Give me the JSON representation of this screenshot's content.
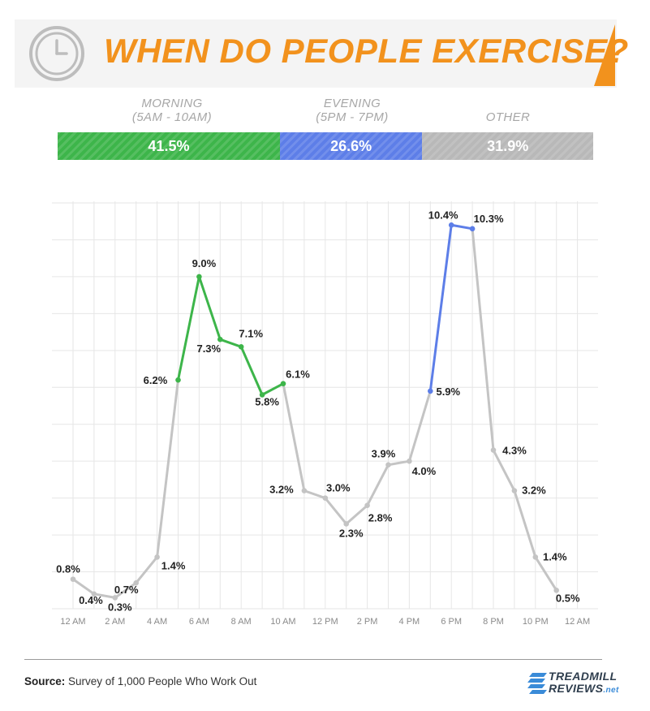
{
  "header": {
    "title": "WHEN DO PEOPLE EXERCISE?",
    "icon": "clock-icon",
    "accent_color": "#f2921d"
  },
  "categories": [
    {
      "line1": "MORNING",
      "line2": "(5AM - 10AM)",
      "share": "41.5%",
      "value": 41.5,
      "color": "#3db54a"
    },
    {
      "line1": "EVENING",
      "line2": "(5PM - 7PM)",
      "share": "26.6%",
      "value": 26.6,
      "color": "#5d7ee8"
    },
    {
      "line1": "OTHER",
      "line2": "",
      "share": "31.9%",
      "value": 31.9,
      "color": "#b8b8b8"
    }
  ],
  "chart_data": {
    "type": "line",
    "x_ticks": [
      "12 AM",
      "2 AM",
      "4 AM",
      "6 AM",
      "8 AM",
      "10 AM",
      "12 PM",
      "2 PM",
      "4 PM",
      "6 PM",
      "8 PM",
      "10 PM",
      "12 AM"
    ],
    "x": [
      0,
      1,
      2,
      3,
      4,
      5,
      6,
      7,
      8,
      9,
      10,
      11,
      12,
      13,
      14,
      15,
      16,
      17,
      18,
      19,
      20,
      21,
      22,
      23
    ],
    "values": [
      0.8,
      0.4,
      0.3,
      0.7,
      1.4,
      6.2,
      9.0,
      7.3,
      7.1,
      5.8,
      6.1,
      3.2,
      3.0,
      2.3,
      2.8,
      3.9,
      4.0,
      5.9,
      10.4,
      10.3,
      4.3,
      3.2,
      1.4,
      0.5
    ],
    "labels": [
      "0.8%",
      "0.4%",
      "0.3%",
      "0.7%",
      "1.4%",
      "6.2%",
      "9.0%",
      "7.3%",
      "7.1%",
      "5.8%",
      "6.1%",
      "3.2%",
      "3.0%",
      "2.3%",
      "2.8%",
      "3.9%",
      "4.0%",
      "5.9%",
      "10.4%",
      "10.3%",
      "4.3%",
      "3.2%",
      "1.4%",
      "0.5%"
    ],
    "segments": [
      {
        "name": "morning",
        "from": 5,
        "to": 10,
        "color": "#3db54a"
      },
      {
        "name": "evening",
        "from": 17,
        "to": 19,
        "color": "#5d7ee8"
      }
    ],
    "base_color": "#c4c4c4",
    "ylim": [
      0,
      11
    ],
    "grid": true
  },
  "footer": {
    "source_label": "Source:",
    "source_text": "Survey of 1,000 People Who Work Out",
    "logo_line1": "TREADMILL",
    "logo_line2": "REVIEWS",
    "logo_suffix": ".net"
  }
}
